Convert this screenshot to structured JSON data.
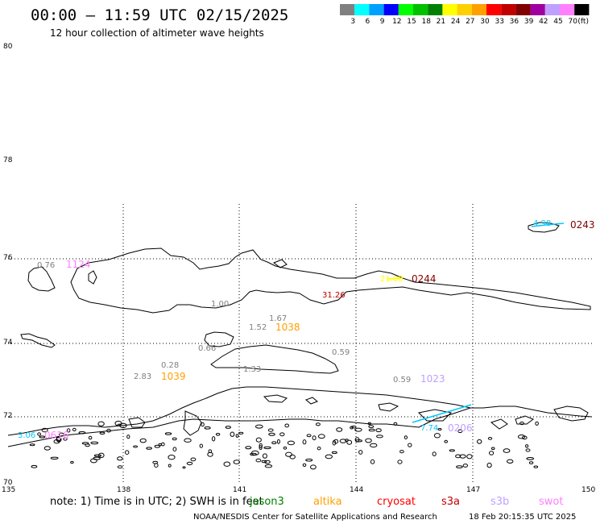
{
  "header": {
    "title": "00:00 – 11:59 UTC 02/15/2025",
    "subtitle": "12 hour collection of altimeter wave heights"
  },
  "legend": {
    "unit": "(ft)",
    "bins": [
      {
        "label": "3",
        "color": "#808080"
      },
      {
        "label": "6",
        "color": "#00ffff"
      },
      {
        "label": "9",
        "color": "#00a0ff"
      },
      {
        "label": "12",
        "color": "#0000ff"
      },
      {
        "label": "15",
        "color": "#00ff00"
      },
      {
        "label": "18",
        "color": "#00c000"
      },
      {
        "label": "21",
        "color": "#008000"
      },
      {
        "label": "24",
        "color": "#ffff00"
      },
      {
        "label": "27",
        "color": "#ffd000"
      },
      {
        "label": "30",
        "color": "#ffa000"
      },
      {
        "label": "33",
        "color": "#ff0000"
      },
      {
        "label": "36",
        "color": "#c00000"
      },
      {
        "label": "39",
        "color": "#800000"
      },
      {
        "label": "42",
        "color": "#a000a0"
      },
      {
        "label": "45",
        "color": "#c0a0ff"
      },
      {
        "label": "70",
        "color": "#ff80ff"
      },
      {
        "label": "",
        "color": "#000000"
      }
    ]
  },
  "axes": {
    "lat_labels": [
      "80",
      "78",
      "76",
      "74",
      "72",
      "70"
    ],
    "lon_labels": [
      "135",
      "138",
      "141",
      "144",
      "147",
      "150"
    ]
  },
  "observations": [
    {
      "id": "obs-1",
      "value": "0.76",
      "color": "#808080",
      "time": "1124",
      "time_color": "#ff80ff"
    },
    {
      "id": "obs-2",
      "value": "4.98",
      "color": "#00c8ff",
      "time": "0243",
      "time_color": "#800000"
    },
    {
      "id": "obs-3",
      "value": "31.26",
      "color": "#c00000",
      "time": "",
      "time_color": "#000000"
    },
    {
      "id": "obs-4",
      "value": "21.00",
      "color": "#ffff00",
      "time": "0244",
      "time_color": "#800000"
    },
    {
      "id": "obs-5",
      "value": "1.00",
      "color": "#808080",
      "time": "",
      "time_color": "#000000"
    },
    {
      "id": "obs-6",
      "value": "1.67",
      "color": "#808080",
      "time": "",
      "time_color": "#000000"
    },
    {
      "id": "obs-7",
      "value": "1.52",
      "color": "#808080",
      "time": "1038",
      "time_color": "#ffa000"
    },
    {
      "id": "obs-8",
      "value": "0.66",
      "color": "#808080",
      "time": "",
      "time_color": "#000000"
    },
    {
      "id": "obs-9",
      "value": "0.59",
      "color": "#808080",
      "time": "",
      "time_color": "#000000"
    },
    {
      "id": "obs-10",
      "value": "0.28",
      "color": "#808080",
      "time": "",
      "time_color": "#000000"
    },
    {
      "id": "obs-11",
      "value": "1.33",
      "color": "#808080",
      "time": "",
      "time_color": "#000000"
    },
    {
      "id": "obs-12",
      "value": "2.83",
      "color": "#808080",
      "time": "1039",
      "time_color": "#ffa000"
    },
    {
      "id": "obs-13",
      "value": "0.59",
      "color": "#808080",
      "time": "1023",
      "time_color": "#c0a0ff"
    },
    {
      "id": "obs-14",
      "value": "3.06",
      "color": "#00c8ff",
      "time": "0616",
      "time_color": "#ff80ff"
    },
    {
      "id": "obs-15",
      "value": "7.74",
      "color": "#00c8ff",
      "time": "0206",
      "time_color": "#c0a0ff"
    }
  ],
  "footer": {
    "note": "note: 1) Time is in UTC; 2) SWH is in feet",
    "satellites": [
      {
        "name": "jason3",
        "color": "#008000"
      },
      {
        "name": "altika",
        "color": "#ffa000"
      },
      {
        "name": "cryosat",
        "color": "#ff0000"
      },
      {
        "name": "s3a",
        "color": "#c00000"
      },
      {
        "name": "s3b",
        "color": "#c0a0ff"
      },
      {
        "name": "swot",
        "color": "#ff80ff"
      }
    ],
    "credit": "NOAA/NESDIS Center for Satellite Applications and Research",
    "timestamp": "18 Feb 20:15:35 UTC 2025"
  }
}
